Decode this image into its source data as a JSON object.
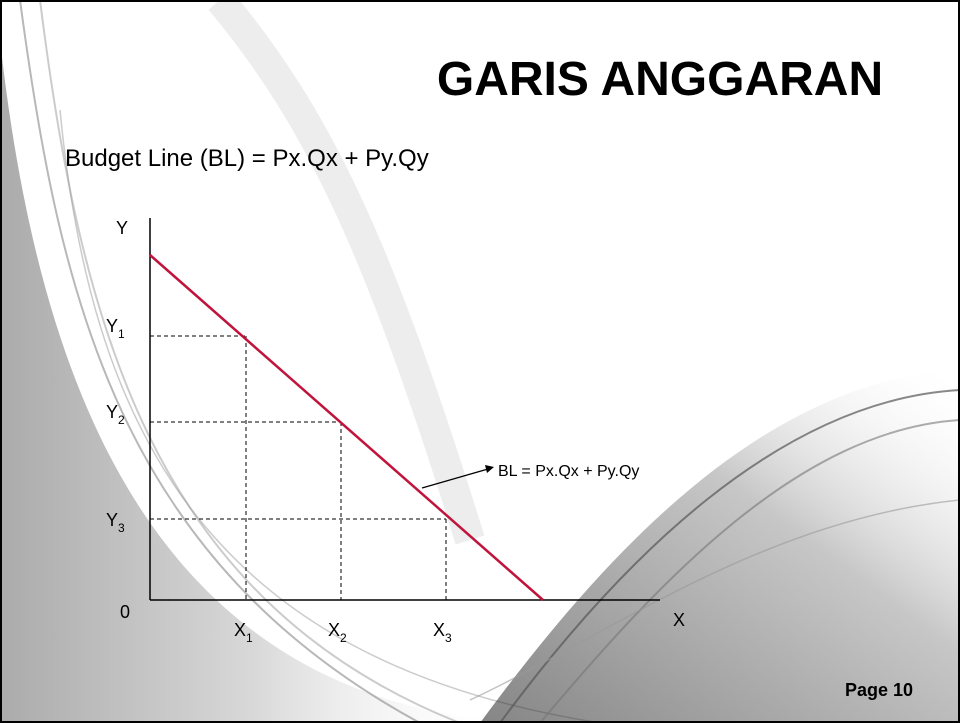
{
  "title": "GARIS ANGGARAN",
  "subtitle": "Budget Line (BL) = Px.Qx + Py.Qy",
  "diagram": {
    "y_axis": "Y",
    "x_axis": "X",
    "origin": "0",
    "y_points": [
      {
        "label": "Y",
        "sub": "1"
      },
      {
        "label": "Y",
        "sub": "2"
      },
      {
        "label": "Y",
        "sub": "3"
      }
    ],
    "x_points": [
      {
        "label": "X",
        "sub": "1"
      },
      {
        "label": "X",
        "sub": "2"
      },
      {
        "label": "X",
        "sub": "3"
      }
    ],
    "line_label": "BL = Px.Qx + Py.Qy"
  },
  "footer": "Page 10"
}
